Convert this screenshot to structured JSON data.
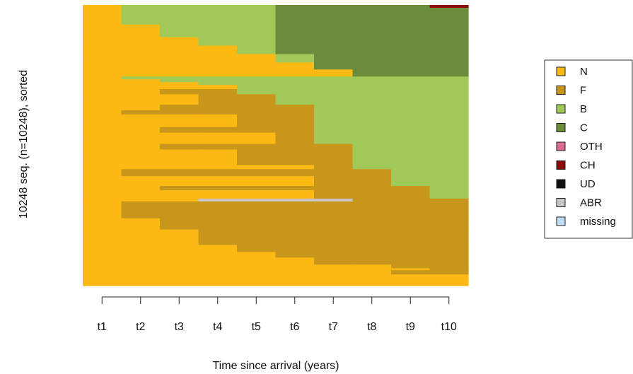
{
  "chart_data": {
    "type": "heatmap",
    "subtype": "sequence index plot (sorted)",
    "ylabel": "10248 seq. (n=10248), sorted",
    "xlabel": "Time since arrival (years)",
    "x": [
      "t1",
      "t2",
      "t3",
      "t4",
      "t5",
      "t6",
      "t7",
      "t8",
      "t9",
      "t10"
    ],
    "n_sequences": 10248,
    "legend": {
      "position": "right",
      "entries": [
        {
          "label": "N",
          "color": "#FDB913"
        },
        {
          "label": "F",
          "color": "#C8961A"
        },
        {
          "label": "B",
          "color": "#A1C95A"
        },
        {
          "label": "C",
          "color": "#6B8C3A"
        },
        {
          "label": "OTH",
          "color": "#D86B8E"
        },
        {
          "label": "CH",
          "color": "#8B0A0A"
        },
        {
          "label": "UD",
          "color": "#111111"
        },
        {
          "label": "ABR",
          "color": "#C7C7C7"
        },
        {
          "label": "missing",
          "color": "#BFDDF5"
        }
      ]
    },
    "bands": [
      {
        "from": 0.0,
        "to": 0.01,
        "states": [
          "N",
          "B",
          "B",
          "B",
          "B",
          "C",
          "C",
          "C",
          "C",
          "CH"
        ]
      },
      {
        "from": 0.01,
        "to": 0.07,
        "states": [
          "N",
          "B",
          "B",
          "B",
          "B",
          "C",
          "C",
          "C",
          "C",
          "C"
        ]
      },
      {
        "from": 0.07,
        "to": 0.115,
        "states": [
          "N",
          "N",
          "B",
          "B",
          "B",
          "C",
          "C",
          "C",
          "C",
          "C"
        ]
      },
      {
        "from": 0.115,
        "to": 0.145,
        "states": [
          "N",
          "N",
          "N",
          "B",
          "B",
          "C",
          "C",
          "C",
          "C",
          "C"
        ]
      },
      {
        "from": 0.145,
        "to": 0.175,
        "states": [
          "N",
          "N",
          "N",
          "N",
          "B",
          "C",
          "C",
          "C",
          "C",
          "C"
        ]
      },
      {
        "from": 0.175,
        "to": 0.205,
        "states": [
          "N",
          "N",
          "N",
          "N",
          "N",
          "B",
          "C",
          "C",
          "C",
          "C"
        ]
      },
      {
        "from": 0.205,
        "to": 0.23,
        "states": [
          "N",
          "N",
          "N",
          "N",
          "N",
          "N",
          "C",
          "C",
          "C",
          "C"
        ]
      },
      {
        "from": 0.23,
        "to": 0.255,
        "states": [
          "N",
          "N",
          "N",
          "N",
          "N",
          "N",
          "N",
          "C",
          "C",
          "C"
        ]
      },
      {
        "from": 0.255,
        "to": 0.265,
        "states": [
          "N",
          "B",
          "B",
          "B",
          "B",
          "B",
          "B",
          "B",
          "B",
          "B"
        ]
      },
      {
        "from": 0.265,
        "to": 0.275,
        "states": [
          "N",
          "N",
          "B",
          "B",
          "B",
          "B",
          "B",
          "B",
          "B",
          "B"
        ]
      },
      {
        "from": 0.275,
        "to": 0.285,
        "states": [
          "N",
          "N",
          "N",
          "B",
          "B",
          "B",
          "B",
          "B",
          "B",
          "B"
        ]
      },
      {
        "from": 0.285,
        "to": 0.3,
        "states": [
          "N",
          "N",
          "N",
          "N",
          "B",
          "B",
          "B",
          "B",
          "B",
          "B"
        ]
      },
      {
        "from": 0.3,
        "to": 0.318,
        "states": [
          "N",
          "N",
          "F",
          "F",
          "B",
          "B",
          "B",
          "B",
          "B",
          "B"
        ]
      },
      {
        "from": 0.318,
        "to": 0.355,
        "states": [
          "N",
          "N",
          "N",
          "F",
          "F",
          "B",
          "B",
          "B",
          "B",
          "B"
        ]
      },
      {
        "from": 0.355,
        "to": 0.375,
        "states": [
          "N",
          "N",
          "F",
          "F",
          "F",
          "F",
          "B",
          "B",
          "B",
          "B"
        ]
      },
      {
        "from": 0.375,
        "to": 0.39,
        "states": [
          "N",
          "F",
          "F",
          "F",
          "F",
          "F",
          "B",
          "B",
          "B",
          "B"
        ]
      },
      {
        "from": 0.39,
        "to": 0.435,
        "states": [
          "N",
          "N",
          "N",
          "N",
          "F",
          "F",
          "B",
          "B",
          "B",
          "B"
        ]
      },
      {
        "from": 0.435,
        "to": 0.455,
        "states": [
          "N",
          "N",
          "F",
          "F",
          "F",
          "F",
          "B",
          "B",
          "B",
          "B"
        ]
      },
      {
        "from": 0.455,
        "to": 0.495,
        "states": [
          "N",
          "N",
          "N",
          "N",
          "N",
          "F",
          "B",
          "B",
          "B",
          "B"
        ]
      },
      {
        "from": 0.495,
        "to": 0.515,
        "states": [
          "N",
          "N",
          "F",
          "F",
          "F",
          "F",
          "F",
          "B",
          "B",
          "B"
        ]
      },
      {
        "from": 0.515,
        "to": 0.57,
        "states": [
          "N",
          "N",
          "N",
          "N",
          "F",
          "F",
          "F",
          "B",
          "B",
          "B"
        ]
      },
      {
        "from": 0.57,
        "to": 0.585,
        "states": [
          "N",
          "N",
          "N",
          "N",
          "N",
          "N",
          "F",
          "B",
          "B",
          "B"
        ]
      },
      {
        "from": 0.585,
        "to": 0.61,
        "states": [
          "N",
          "F",
          "F",
          "F",
          "F",
          "F",
          "F",
          "F",
          "B",
          "B"
        ]
      },
      {
        "from": 0.61,
        "to": 0.645,
        "states": [
          "N",
          "N",
          "N",
          "N",
          "N",
          "N",
          "F",
          "F",
          "B",
          "B"
        ]
      },
      {
        "from": 0.645,
        "to": 0.66,
        "states": [
          "N",
          "N",
          "F",
          "F",
          "F",
          "F",
          "F",
          "F",
          "F",
          "B"
        ]
      },
      {
        "from": 0.66,
        "to": 0.69,
        "states": [
          "N",
          "N",
          "N",
          "N",
          "N",
          "N",
          "F",
          "F",
          "F",
          "B"
        ]
      },
      {
        "from": 0.69,
        "to": 0.7,
        "states": [
          "N",
          "N",
          "N",
          "ABR",
          "ABR",
          "ABR",
          "ABR",
          "F",
          "F",
          "F"
        ]
      },
      {
        "from": 0.7,
        "to": 0.705,
        "states": [
          "N",
          "F",
          "F",
          "F",
          "F",
          "F",
          "F",
          "F",
          "F",
          "F"
        ]
      },
      {
        "from": 0.705,
        "to": 0.76,
        "states": [
          "N",
          "F",
          "F",
          "F",
          "F",
          "F",
          "F",
          "F",
          "F",
          "F"
        ]
      },
      {
        "from": 0.76,
        "to": 0.8,
        "states": [
          "N",
          "N",
          "F",
          "F",
          "F",
          "F",
          "F",
          "F",
          "F",
          "F"
        ]
      },
      {
        "from": 0.8,
        "to": 0.855,
        "states": [
          "N",
          "N",
          "N",
          "F",
          "F",
          "F",
          "F",
          "F",
          "F",
          "F"
        ]
      },
      {
        "from": 0.855,
        "to": 0.88,
        "states": [
          "N",
          "N",
          "N",
          "N",
          "F",
          "F",
          "F",
          "F",
          "F",
          "F"
        ]
      },
      {
        "from": 0.88,
        "to": 0.9,
        "states": [
          "N",
          "N",
          "N",
          "N",
          "N",
          "F",
          "F",
          "F",
          "F",
          "F"
        ]
      },
      {
        "from": 0.9,
        "to": 0.925,
        "states": [
          "N",
          "N",
          "N",
          "N",
          "N",
          "N",
          "F",
          "F",
          "F",
          "F"
        ]
      },
      {
        "from": 0.925,
        "to": 0.938,
        "states": [
          "N",
          "N",
          "N",
          "N",
          "N",
          "N",
          "N",
          "N",
          "F",
          "F"
        ]
      },
      {
        "from": 0.938,
        "to": 0.945,
        "states": [
          "N",
          "N",
          "N",
          "N",
          "N",
          "N",
          "N",
          "N",
          "N",
          "F"
        ]
      },
      {
        "from": 0.945,
        "to": 0.96,
        "states": [
          "N",
          "N",
          "N",
          "N",
          "N",
          "N",
          "N",
          "N",
          "F",
          "F"
        ]
      },
      {
        "from": 0.96,
        "to": 1.0,
        "states": [
          "N",
          "N",
          "N",
          "N",
          "N",
          "N",
          "N",
          "N",
          "N",
          "N"
        ]
      }
    ]
  }
}
